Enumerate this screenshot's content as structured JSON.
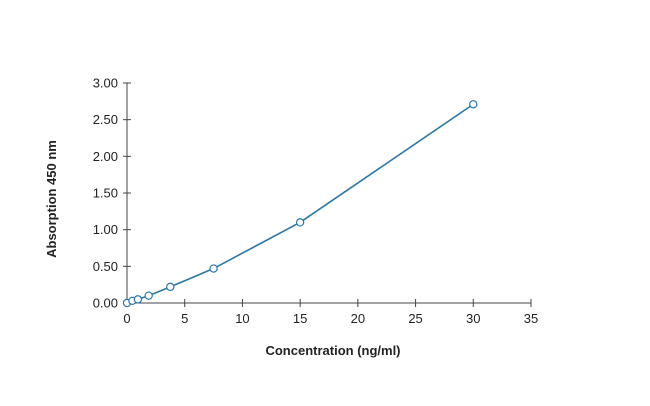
{
  "chart_data": {
    "type": "line",
    "title": "",
    "xlabel": "Concentration (ng/ml)",
    "ylabel": "Absorption 450 nm",
    "xlim": [
      0,
      35
    ],
    "ylim": [
      0,
      3
    ],
    "x_ticks": [
      "0",
      "5",
      "10",
      "15",
      "20",
      "25",
      "30",
      "35"
    ],
    "y_ticks": [
      "0.00",
      "0.50",
      "1.00",
      "1.50",
      "2.00",
      "2.50",
      "3.00"
    ],
    "grid": false,
    "legend": "none",
    "series": [
      {
        "marker": "open-circle",
        "color": "#2a78a8",
        "x": [
          0,
          0.47,
          0.94,
          1.88,
          3.75,
          7.5,
          15,
          30
        ],
        "y": [
          0.0,
          0.03,
          0.05,
          0.1,
          0.22,
          0.47,
          1.1,
          2.71
        ]
      }
    ]
  }
}
